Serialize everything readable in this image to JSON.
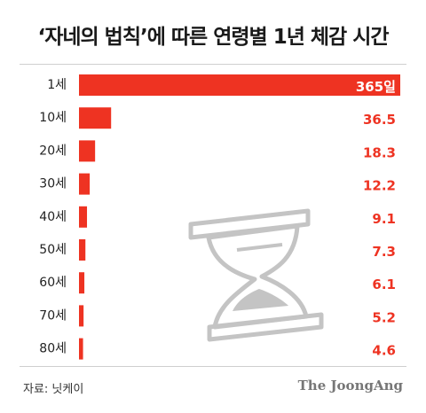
{
  "title": "‘자네의 법칙’에 따른 연령별 1년 체감 시간",
  "source": "자료: 닛케이",
  "brand": "The JoongAng",
  "icon": "hourglass-icon",
  "colors": {
    "bar": "#ee3322",
    "label": "#ee3322",
    "top_label": "#ffffff",
    "category": "#222222"
  },
  "chart_data": {
    "type": "bar",
    "orientation": "horizontal",
    "categories": [
      "1세",
      "10세",
      "20세",
      "30세",
      "40세",
      "50세",
      "60세",
      "70세",
      "80세"
    ],
    "values": [
      365,
      36.5,
      18.3,
      12.2,
      9.1,
      7.3,
      6.1,
      5.2,
      4.6
    ],
    "value_labels": [
      "365일",
      "36.5",
      "18.3",
      "12.2",
      "9.1",
      "7.3",
      "6.1",
      "5.2",
      "4.6"
    ],
    "title": "‘자네의 법칙’에 따른 연령별 1년 체감 시간",
    "xlim": [
      0,
      365
    ],
    "grid": false,
    "legend": "none"
  }
}
